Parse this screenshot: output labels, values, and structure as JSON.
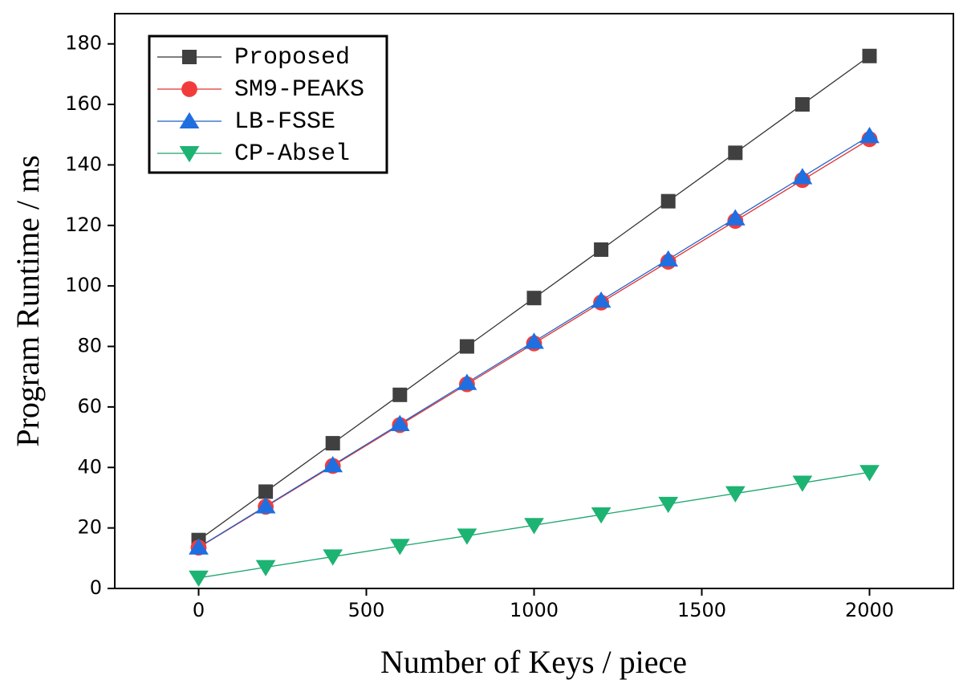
{
  "chart_data": {
    "type": "line",
    "xlabel": "Number of Keys / piece",
    "ylabel": "Program Runtime / ms",
    "x": [
      0,
      200,
      400,
      600,
      800,
      1000,
      1200,
      1400,
      1600,
      1800,
      2000
    ],
    "series": [
      {
        "name": "Proposed",
        "color": "#404040",
        "line_color": "#333333",
        "marker": "square",
        "values": [
          16,
          32,
          48,
          64,
          80,
          96,
          112,
          128,
          144,
          160,
          176
        ]
      },
      {
        "name": "SM9-PEAKS",
        "color": "#f23c3c",
        "line_color": "#e03030",
        "marker": "circle",
        "values": [
          13.5,
          27,
          40.5,
          54,
          67.5,
          81,
          94.5,
          108,
          121.5,
          135,
          148.5
        ]
      },
      {
        "name": "LB-FSSE",
        "color": "#1f6fe0",
        "line_color": "#1f5fc8",
        "marker": "triangle-up",
        "values": [
          13.6,
          27.2,
          40.8,
          54.4,
          68,
          81.6,
          95.2,
          108.8,
          122.4,
          136,
          149.6
        ]
      },
      {
        "name": "CP-Absel",
        "color": "#1db373",
        "line_color": "#1aa56a",
        "marker": "triangle-down",
        "values": [
          3.5,
          7,
          10.5,
          14,
          17.4,
          20.9,
          24.4,
          27.9,
          31.4,
          34.9,
          38.4
        ]
      }
    ],
    "xlim": [
      -250,
      2250
    ],
    "xticks": [
      0,
      500,
      1000,
      1500,
      2000
    ],
    "ylim": [
      0,
      190
    ],
    "yticks": [
      0,
      20,
      40,
      60,
      80,
      100,
      120,
      140,
      160,
      180
    ],
    "legend": "upper left",
    "grid": false
  }
}
